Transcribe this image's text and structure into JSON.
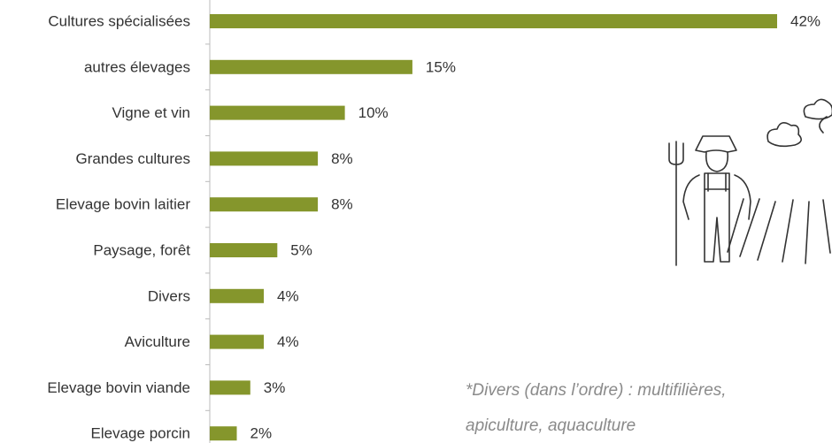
{
  "chart_data": {
    "type": "bar",
    "orientation": "horizontal",
    "categories": [
      "Cultures spécialisées",
      "autres élevages",
      "Vigne et vin",
      "Grandes cultures",
      "Elevage bovin laitier",
      "Paysage, forêt",
      "Divers",
      "Aviculture",
      "Elevage bovin viande",
      "Elevage porcin"
    ],
    "values": [
      42,
      15,
      10,
      8,
      8,
      5,
      4,
      4,
      3,
      2
    ],
    "value_labels": [
      "42%",
      "15%",
      "10%",
      "8%",
      "8%",
      "5%",
      "4%",
      "4%",
      "3%",
      "2%"
    ],
    "color": "#85962c",
    "annotation": [
      "*Divers (dans l’ordre) : multifilières,",
      "apiculture, aquaculture"
    ]
  }
}
